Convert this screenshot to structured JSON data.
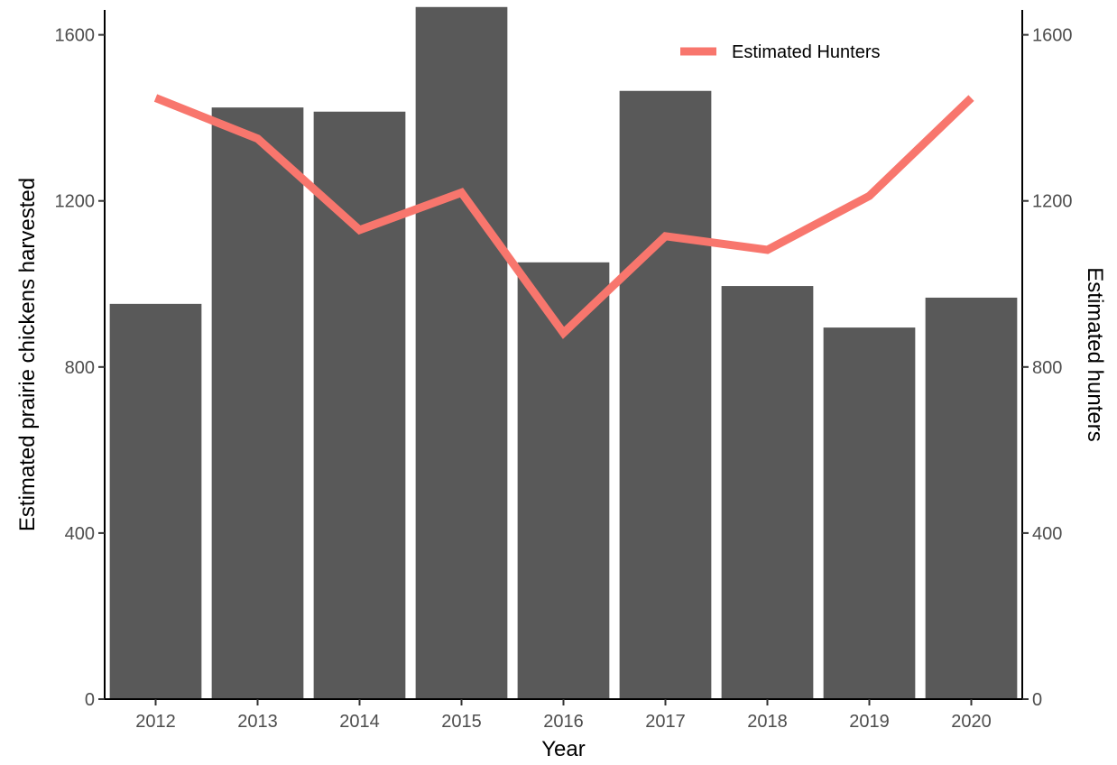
{
  "chart_data": {
    "type": "bar",
    "categories": [
      "2012",
      "2013",
      "2014",
      "2015",
      "2016",
      "2017",
      "2018",
      "2019",
      "2020"
    ],
    "series": [
      {
        "type": "bar",
        "axis": "left",
        "values": [
          952,
          1425,
          1415,
          1667,
          1052,
          1465,
          995,
          895,
          967
        ],
        "color": "#595959"
      },
      {
        "name": "Estimated Hunters",
        "type": "line",
        "axis": "right",
        "values": [
          1448,
          1350,
          1130,
          1220,
          882,
          1115,
          1082,
          1212,
          1448
        ],
        "color": "#f8766d"
      }
    ],
    "xlabel": "Year",
    "ylabel": "Estimated prairie chickens harvested",
    "y2label": "Estimated hunters",
    "ylim": [
      0,
      1660
    ],
    "yticks": [
      0,
      400,
      800,
      1200,
      1600
    ],
    "y2lim": [
      0,
      1660
    ],
    "y2ticks": [
      0,
      400,
      800,
      1200,
      1600
    ],
    "legend_position": "top-right",
    "grid": false
  }
}
